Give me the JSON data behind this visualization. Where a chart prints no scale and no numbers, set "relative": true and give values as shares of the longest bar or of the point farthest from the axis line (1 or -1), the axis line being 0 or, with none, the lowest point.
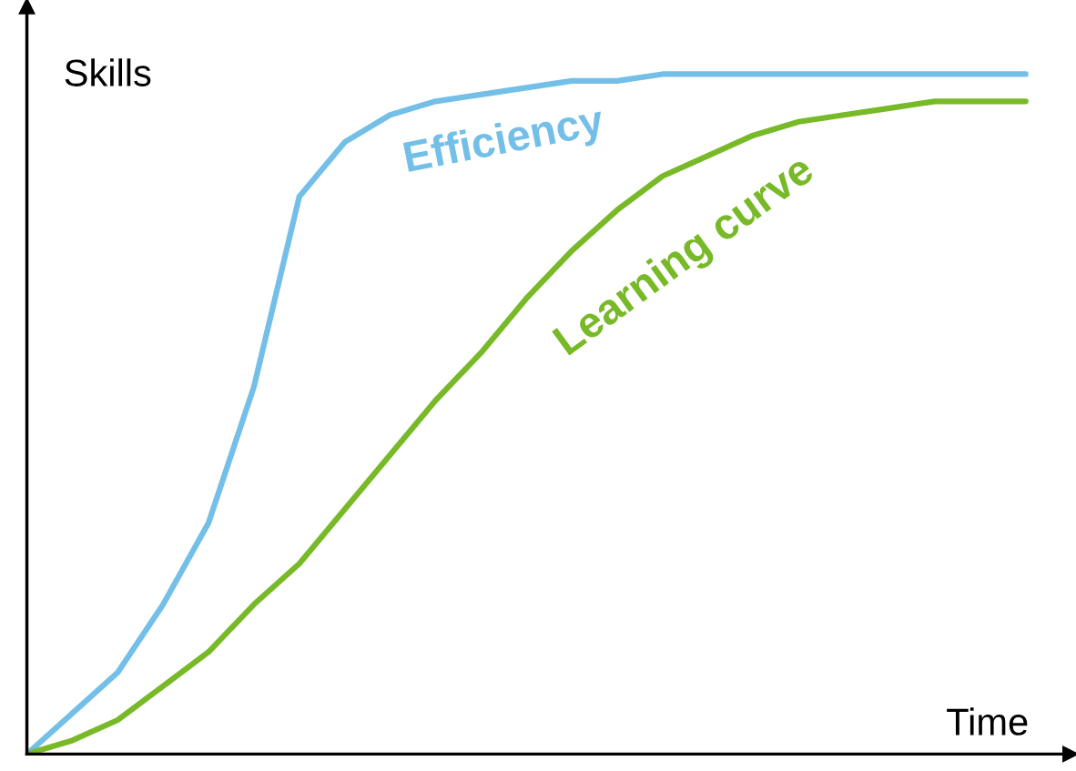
{
  "chart_data": {
    "type": "line",
    "relative": true,
    "xlabel": "Time",
    "ylabel": "Skills",
    "categories": [
      null,
      null,
      null,
      null,
      null,
      null,
      null,
      null,
      null,
      null,
      null,
      null,
      null,
      null,
      null,
      null,
      null,
      null,
      null,
      null,
      null,
      null,
      null
    ],
    "series": [
      {
        "name": "Efficiency",
        "color": "#73bfe8",
        "values": [
          0,
          0.06,
          0.12,
          0.22,
          0.34,
          0.54,
          0.82,
          0.9,
          0.94,
          0.96,
          0.97,
          0.98,
          0.99,
          0.99,
          1,
          1,
          1,
          1,
          1,
          1,
          1,
          1,
          1
        ]
      },
      {
        "name": "Learning curve",
        "color": "#78b928",
        "values": [
          0,
          0.02,
          0.05,
          0.1,
          0.15,
          0.22,
          0.28,
          0.36,
          0.44,
          0.52,
          0.59,
          0.67,
          0.74,
          0.8,
          0.85,
          0.88,
          0.91,
          0.93,
          0.94,
          0.95,
          0.96,
          0.96,
          0.96
        ]
      }
    ],
    "grid": false,
    "legend": false,
    "marker": "none",
    "line_style": "solid"
  }
}
